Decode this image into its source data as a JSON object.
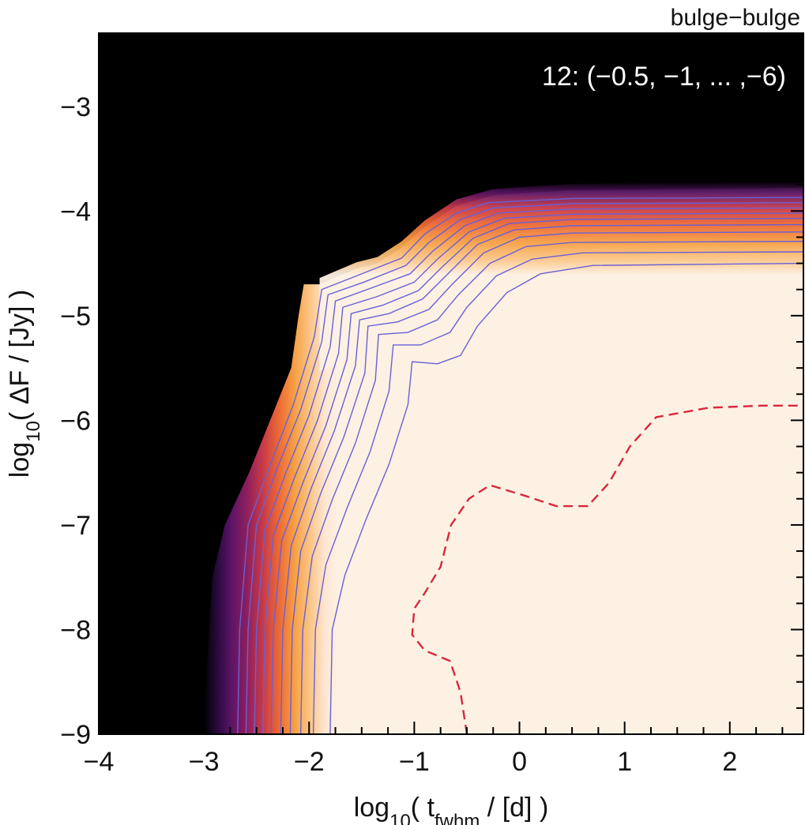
{
  "chart_data": {
    "type": "heatmap",
    "title": "bulge−bulge",
    "annotation": "12: (−0.5, −1, ... ,−6)",
    "xlabel": {
      "prefix": "log",
      "sub1": "10",
      "middle": "( t",
      "sub2": "fwhm",
      "suffix": " / [d] )"
    },
    "ylabel": {
      "prefix": "log",
      "sub1": "10",
      "suffix": "( ΔF / [Jy] )"
    },
    "xlim": [
      -4,
      2.7
    ],
    "ylim": [
      -9,
      -2.3
    ],
    "xticks": [
      {
        "value": -4,
        "label": "−4"
      },
      {
        "value": -3,
        "label": "−3"
      },
      {
        "value": -2,
        "label": "−2"
      },
      {
        "value": -1,
        "label": "−1"
      },
      {
        "value": 0,
        "label": "0"
      },
      {
        "value": 1,
        "label": "1"
      },
      {
        "value": 2,
        "label": "2"
      }
    ],
    "yticks": [
      {
        "value": -9,
        "label": "−9"
      },
      {
        "value": -8,
        "label": "−8"
      },
      {
        "value": -7,
        "label": "−7"
      },
      {
        "value": -6,
        "label": "−6"
      },
      {
        "value": -5,
        "label": "−5"
      },
      {
        "value": -4,
        "label": "−4"
      },
      {
        "value": -3,
        "label": "−3"
      }
    ],
    "minor_tick_step": 0.25,
    "grid": false,
    "colors": {
      "background_zero": "#000000",
      "plateau": "#fdf1e4",
      "gradient_stops": [
        "#000000",
        "#2a0a3e",
        "#5a1466",
        "#8e1f5e",
        "#c83a48",
        "#ec6a34",
        "#f7a247",
        "#fbc88c",
        "#fde6d2",
        "#fdf1e4"
      ],
      "contour_line": "#6a60d6",
      "dashed_contour": "#d8283c"
    },
    "contour_levels": [
      -0.5,
      -1,
      -1.5,
      -2,
      -2.5,
      -3,
      -3.5,
      -4,
      -4.5,
      -5,
      -5.5,
      -6
    ],
    "edge_curve": [
      {
        "y": -9.0,
        "x": -2.85
      },
      {
        "y": -8.5,
        "x": -2.83
      },
      {
        "y": -8.0,
        "x": -2.8
      },
      {
        "y": -7.5,
        "x": -2.77
      },
      {
        "y": -7.0,
        "x": -2.65
      },
      {
        "y": -6.5,
        "x": -2.42
      },
      {
        "y": -6.0,
        "x": -2.22
      },
      {
        "y": -5.5,
        "x": -2.02
      },
      {
        "y": -5.0,
        "x": -1.95
      },
      {
        "y": -4.7,
        "x": -1.9
      },
      {
        "y": -4.55,
        "x": -1.55
      },
      {
        "y": -4.5,
        "x": -1.35
      },
      {
        "y": -4.35,
        "x": -1.12
      },
      {
        "y": -4.15,
        "x": -0.9
      },
      {
        "y": -3.95,
        "x": -0.6
      },
      {
        "y": -3.85,
        "x": -0.25
      },
      {
        "y": -3.8,
        "x": 0.5
      },
      {
        "y": -3.78,
        "x": 2.7
      }
    ],
    "plateau_level": -3.78,
    "contour_line_levels": [
      {
        "y": -9.0,
        "x": -2.65
      },
      {
        "y": -9.0,
        "x": -2.52
      },
      {
        "y": -9.0,
        "x": -2.4
      },
      {
        "y": -9.0,
        "x": -2.28
      },
      {
        "y": -9.0,
        "x": -2.15
      },
      {
        "y": -9.0,
        "x": -2.05
      },
      {
        "y": -9.0,
        "x": -1.95
      }
    ],
    "contour_lines": [
      {
        "level": -0.5,
        "points": [
          [
            -2.68,
            -9.0
          ],
          [
            -2.66,
            -8.0
          ],
          [
            -2.58,
            -7.0
          ],
          [
            -2.36,
            -6.4
          ],
          [
            -2.15,
            -5.85
          ],
          [
            -1.95,
            -5.2
          ],
          [
            -1.88,
            -4.75
          ],
          [
            -1.55,
            -4.62
          ],
          [
            -1.12,
            -4.45
          ],
          [
            -0.9,
            -4.22
          ],
          [
            -0.6,
            -4.02
          ],
          [
            -0.3,
            -3.92
          ],
          [
            0.5,
            -3.88
          ],
          [
            2.7,
            -3.87
          ]
        ]
      },
      {
        "level": -1,
        "points": [
          [
            -2.6,
            -9.0
          ],
          [
            -2.58,
            -8.0
          ],
          [
            -2.5,
            -7.0
          ],
          [
            -2.3,
            -6.45
          ],
          [
            -2.08,
            -5.9
          ],
          [
            -1.88,
            -5.25
          ],
          [
            -1.82,
            -4.8
          ],
          [
            -1.48,
            -4.68
          ],
          [
            -1.08,
            -4.52
          ],
          [
            -0.86,
            -4.3
          ],
          [
            -0.56,
            -4.08
          ],
          [
            -0.25,
            -3.97
          ],
          [
            0.5,
            -3.93
          ],
          [
            2.7,
            -3.92
          ]
        ]
      },
      {
        "level": -1.5,
        "points": [
          [
            -2.52,
            -9.0
          ],
          [
            -2.5,
            -8.0
          ],
          [
            -2.42,
            -7.05
          ],
          [
            -2.22,
            -6.5
          ],
          [
            -2.0,
            -5.95
          ],
          [
            -1.8,
            -5.3
          ],
          [
            -1.75,
            -4.86
          ],
          [
            -1.42,
            -4.74
          ],
          [
            -1.04,
            -4.6
          ],
          [
            -0.82,
            -4.38
          ],
          [
            -0.52,
            -4.14
          ],
          [
            -0.2,
            -4.02
          ],
          [
            0.5,
            -3.98
          ],
          [
            2.7,
            -3.97
          ]
        ]
      },
      {
        "level": -2,
        "points": [
          [
            -2.44,
            -9.0
          ],
          [
            -2.42,
            -8.0
          ],
          [
            -2.34,
            -7.1
          ],
          [
            -2.14,
            -6.55
          ],
          [
            -1.92,
            -6.0
          ],
          [
            -1.72,
            -5.36
          ],
          [
            -1.68,
            -4.92
          ],
          [
            -1.36,
            -4.82
          ],
          [
            -1.0,
            -4.68
          ],
          [
            -0.78,
            -4.46
          ],
          [
            -0.48,
            -4.2
          ],
          [
            -0.15,
            -4.07
          ],
          [
            0.5,
            -4.03
          ],
          [
            2.7,
            -4.02
          ]
        ]
      },
      {
        "level": -2.5,
        "points": [
          [
            -2.36,
            -9.0
          ],
          [
            -2.34,
            -8.0
          ],
          [
            -2.26,
            -7.15
          ],
          [
            -2.06,
            -6.6
          ],
          [
            -1.84,
            -6.05
          ],
          [
            -1.64,
            -5.42
          ],
          [
            -1.6,
            -4.98
          ],
          [
            -1.3,
            -4.9
          ],
          [
            -0.96,
            -4.76
          ],
          [
            -0.74,
            -4.54
          ],
          [
            -0.44,
            -4.26
          ],
          [
            -0.1,
            -4.12
          ],
          [
            0.5,
            -4.08
          ],
          [
            2.7,
            -4.07
          ]
        ]
      },
      {
        "level": -3,
        "points": [
          [
            -2.27,
            -9.0
          ],
          [
            -2.25,
            -8.0
          ],
          [
            -2.17,
            -7.2
          ],
          [
            -1.98,
            -6.65
          ],
          [
            -1.76,
            -6.1
          ],
          [
            -1.56,
            -5.48
          ],
          [
            -1.52,
            -5.04
          ],
          [
            -1.24,
            -4.98
          ],
          [
            -0.92,
            -4.84
          ],
          [
            -0.7,
            -4.62
          ],
          [
            -0.4,
            -4.32
          ],
          [
            -0.05,
            -4.18
          ],
          [
            0.5,
            -4.14
          ],
          [
            2.7,
            -4.13
          ]
        ]
      },
      {
        "level": -3.5,
        "points": [
          [
            -2.18,
            -9.0
          ],
          [
            -2.16,
            -8.0
          ],
          [
            -2.08,
            -7.25
          ],
          [
            -1.89,
            -6.7
          ],
          [
            -1.67,
            -6.16
          ],
          [
            -1.47,
            -5.55
          ],
          [
            -1.44,
            -5.1
          ],
          [
            -1.16,
            -5.06
          ],
          [
            -0.86,
            -4.94
          ],
          [
            -0.64,
            -4.7
          ],
          [
            -0.34,
            -4.4
          ],
          [
            0.0,
            -4.25
          ],
          [
            0.5,
            -4.21
          ],
          [
            2.7,
            -4.2
          ]
        ]
      },
      {
        "level": -4,
        "points": [
          [
            -2.08,
            -9.0
          ],
          [
            -2.06,
            -8.0
          ],
          [
            -1.97,
            -7.3
          ],
          [
            -1.78,
            -6.76
          ],
          [
            -1.56,
            -6.22
          ],
          [
            -1.37,
            -5.62
          ],
          [
            -1.34,
            -5.18
          ],
          [
            -1.06,
            -5.16
          ],
          [
            -0.78,
            -5.04
          ],
          [
            -0.58,
            -4.8
          ],
          [
            -0.28,
            -4.5
          ],
          [
            0.06,
            -4.34
          ],
          [
            0.5,
            -4.3
          ],
          [
            2.7,
            -4.29
          ]
        ]
      },
      {
        "level": -4.5,
        "points": [
          [
            -1.96,
            -9.0
          ],
          [
            -1.94,
            -8.0
          ],
          [
            -1.84,
            -7.38
          ],
          [
            -1.64,
            -6.84
          ],
          [
            -1.42,
            -6.3
          ],
          [
            -1.24,
            -5.72
          ],
          [
            -1.2,
            -5.28
          ],
          [
            -0.94,
            -5.28
          ],
          [
            -0.66,
            -5.16
          ],
          [
            -0.5,
            -4.92
          ],
          [
            -0.22,
            -4.62
          ],
          [
            0.12,
            -4.46
          ],
          [
            0.6,
            -4.4
          ],
          [
            2.7,
            -4.39
          ]
        ]
      },
      {
        "level": -5,
        "points": [
          [
            -1.8,
            -9.0
          ],
          [
            -1.78,
            -8.0
          ],
          [
            -1.66,
            -7.48
          ],
          [
            -1.46,
            -6.95
          ],
          [
            -1.24,
            -6.42
          ],
          [
            -1.06,
            -5.85
          ],
          [
            -1.02,
            -5.44
          ],
          [
            -0.78,
            -5.46
          ],
          [
            -0.56,
            -5.38
          ],
          [
            -0.4,
            -5.1
          ],
          [
            -0.12,
            -4.78
          ],
          [
            0.2,
            -4.6
          ],
          [
            0.7,
            -4.52
          ],
          [
            2.7,
            -4.5
          ]
        ]
      }
    ],
    "dashed_contour": {
      "level": -6,
      "points": [
        [
          -0.5,
          -9.0
        ],
        [
          -0.56,
          -8.6
        ],
        [
          -0.66,
          -8.3
        ],
        [
          -0.9,
          -8.2
        ],
        [
          -1.02,
          -8.05
        ],
        [
          -1.0,
          -7.8
        ],
        [
          -0.9,
          -7.65
        ],
        [
          -0.75,
          -7.4
        ],
        [
          -0.65,
          -7.0
        ],
        [
          -0.48,
          -6.75
        ],
        [
          -0.28,
          -6.62
        ],
        [
          0.05,
          -6.72
        ],
        [
          0.35,
          -6.82
        ],
        [
          0.65,
          -6.82
        ],
        [
          0.85,
          -6.6
        ],
        [
          1.05,
          -6.25
        ],
        [
          1.3,
          -5.97
        ],
        [
          1.8,
          -5.88
        ],
        [
          2.3,
          -5.86
        ],
        [
          2.7,
          -5.86
        ]
      ]
    }
  }
}
